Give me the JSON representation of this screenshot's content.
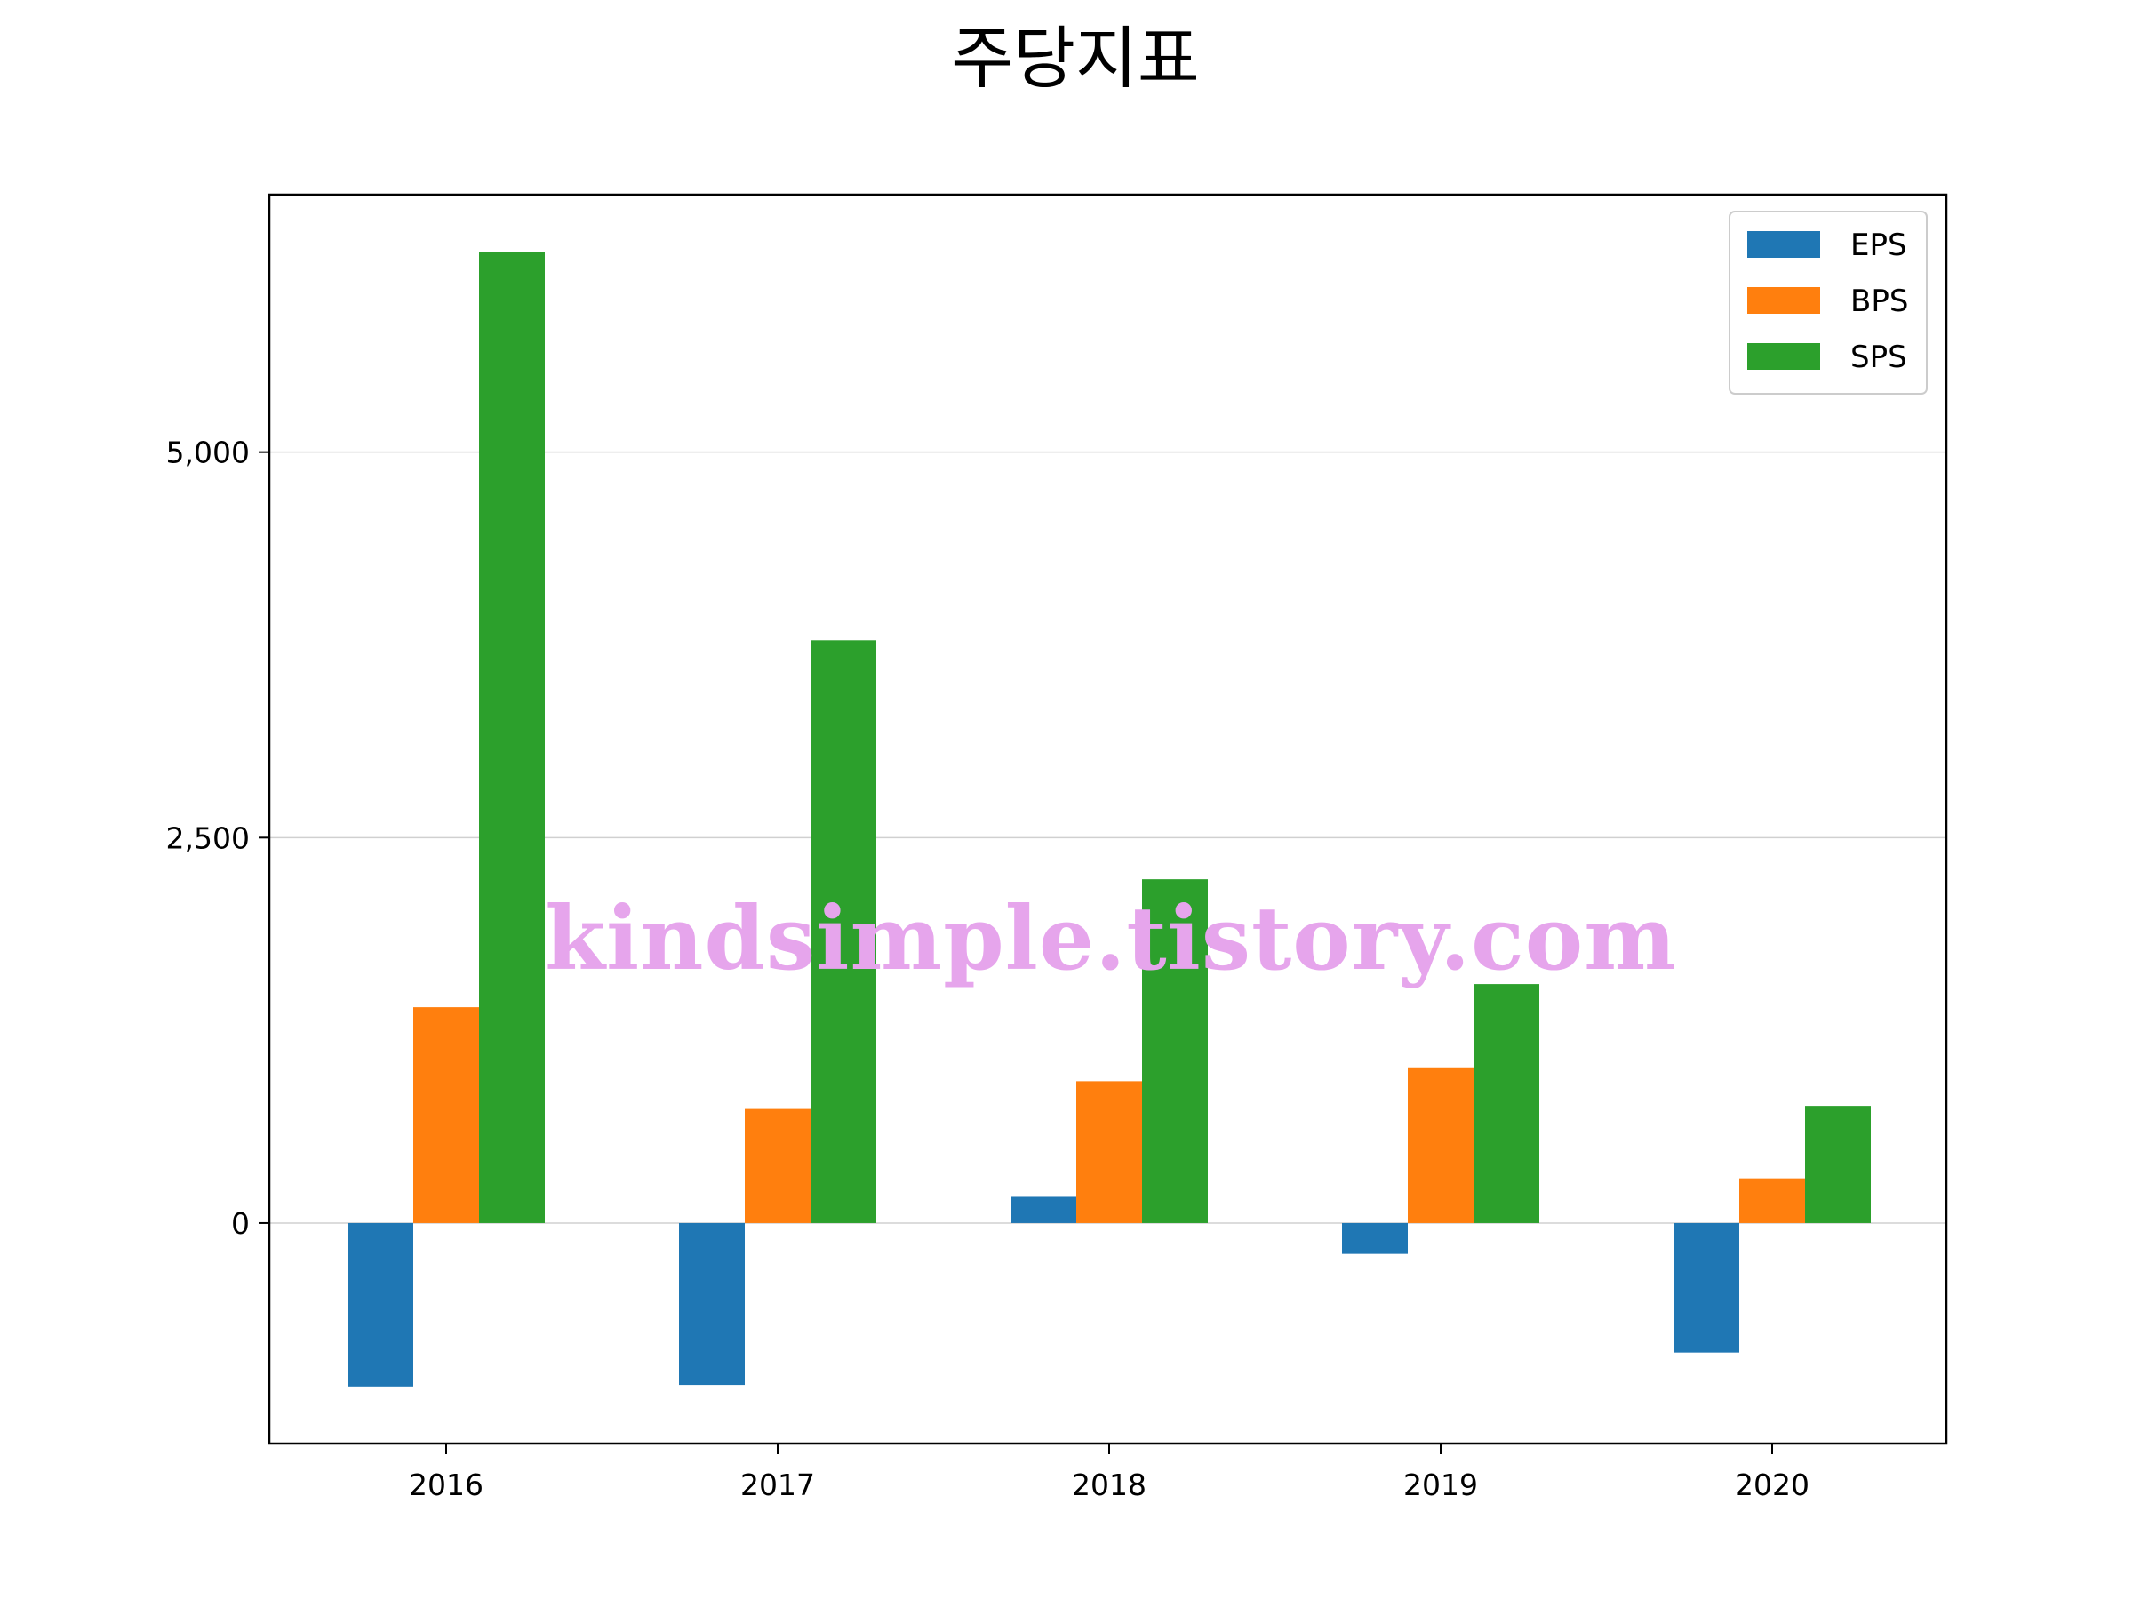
{
  "chart_data": {
    "type": "bar",
    "title": "주당지표",
    "xlabel": "",
    "ylabel": "",
    "categories": [
      "2016",
      "2017",
      "2018",
      "2019",
      "2020"
    ],
    "series": [
      {
        "name": "EPS",
        "color": "#1f77b4",
        "values": [
          -1060,
          -1050,
          170,
          -200,
          -840
        ]
      },
      {
        "name": "BPS",
        "color": "#ff7f0e",
        "values": [
          1400,
          740,
          920,
          1010,
          290
        ]
      },
      {
        "name": "SPS",
        "color": "#2ca02c",
        "values": [
          6300,
          3780,
          2230,
          1550,
          760
        ]
      }
    ],
    "ylim": [
      -1430,
      6670
    ],
    "yticks": [
      0,
      2500,
      5000
    ],
    "ytick_labels": [
      "0",
      "2,500",
      "5,000"
    ],
    "grid": "horizontal",
    "legend_position": "top-right"
  },
  "watermark": "kindsimple.tistory.com"
}
